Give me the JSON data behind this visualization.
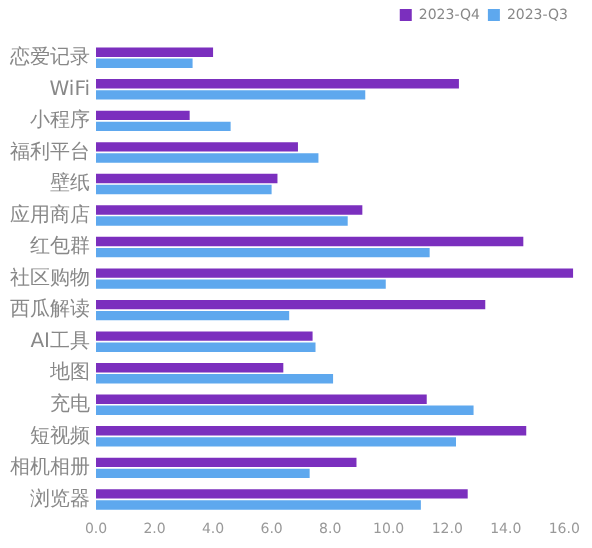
{
  "chart_data": {
    "type": "bar",
    "orientation": "horizontal",
    "categories": [
      "恋爱记录",
      "WiFi",
      "小程序",
      "福利平台",
      "壁纸",
      "应用商店",
      "红包群",
      "社区购物",
      "西瓜解读",
      "AI工具",
      "地图",
      "充电",
      "短视频",
      "相机相册",
      "浏览器"
    ],
    "series": [
      {
        "name": "2023-Q4",
        "color": "#7b2fbe",
        "values": [
          4.0,
          12.4,
          3.2,
          6.9,
          6.2,
          9.1,
          14.6,
          16.3,
          13.3,
          7.4,
          6.4,
          11.3,
          14.7,
          8.9,
          12.7
        ]
      },
      {
        "name": "2023-Q3",
        "color": "#5ea8ee",
        "values": [
          3.3,
          9.2,
          4.6,
          7.6,
          6.0,
          8.6,
          11.4,
          9.9,
          6.6,
          7.5,
          8.1,
          12.9,
          12.3,
          7.3,
          11.1
        ]
      }
    ],
    "xlim": [
      0,
      16.4
    ],
    "xticks": [
      {
        "value": 0,
        "label": "0.0"
      },
      {
        "value": 2,
        "label": "2.0"
      },
      {
        "value": 4,
        "label": "4.0"
      },
      {
        "value": 6,
        "label": "6.0"
      },
      {
        "value": 8,
        "label": "8.0"
      },
      {
        "value": 10,
        "label": "10.0"
      },
      {
        "value": 12,
        "label": "12.0"
      },
      {
        "value": 14,
        "label": "14.0"
      },
      {
        "value": 16,
        "label": "16.0"
      }
    ],
    "legend": "top right",
    "grid": false
  }
}
